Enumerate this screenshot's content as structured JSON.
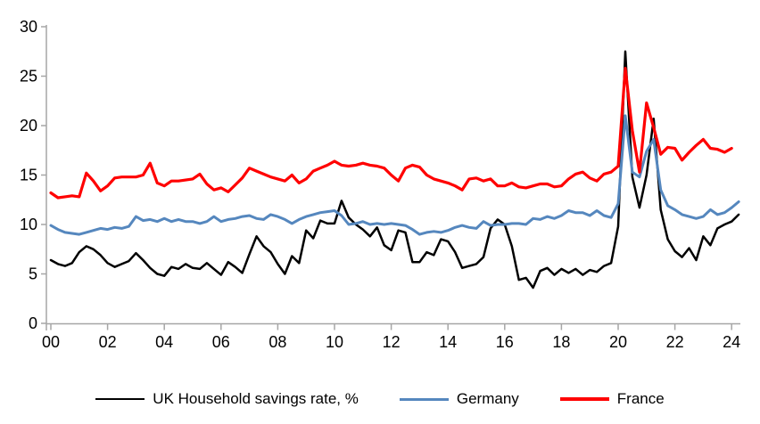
{
  "chart_data": {
    "type": "line",
    "title": "",
    "x_axis": {
      "tick_labels": [
        "00",
        "02",
        "04",
        "06",
        "08",
        "10",
        "12",
        "14",
        "16",
        "18",
        "20",
        "22",
        "24"
      ],
      "start_year": 2000,
      "points_per_year": 4
    },
    "y_axis": {
      "ticks": [
        0,
        5,
        10,
        15,
        20,
        25,
        30
      ],
      "min": 0,
      "max": 30
    },
    "grid": false,
    "legend_position": "bottom",
    "series": [
      {
        "name": "UK Household savings rate, %",
        "color": "#000000",
        "values": [
          6.4,
          6.0,
          5.8,
          6.1,
          7.2,
          7.8,
          7.5,
          6.9,
          6.1,
          5.7,
          6.0,
          6.3,
          7.1,
          6.4,
          5.6,
          5.0,
          4.8,
          5.7,
          5.5,
          6.0,
          5.6,
          5.5,
          6.1,
          5.5,
          4.9,
          6.2,
          5.7,
          5.1,
          7.0,
          8.8,
          7.8,
          7.2,
          6.0,
          5.0,
          6.8,
          6.1,
          9.4,
          8.6,
          10.4,
          10.1,
          10.1,
          12.4,
          10.7,
          10.0,
          9.5,
          8.8,
          9.7,
          7.9,
          7.4,
          9.4,
          9.2,
          6.2,
          6.2,
          7.2,
          6.9,
          8.5,
          8.3,
          7.2,
          5.6,
          5.8,
          6.0,
          6.7,
          9.6,
          10.5,
          10.0,
          7.8,
          4.4,
          4.6,
          3.6,
          5.3,
          5.6,
          4.9,
          5.5,
          5.1,
          5.5,
          4.9,
          5.4,
          5.2,
          5.8,
          6.1,
          9.8,
          27.5,
          14.8,
          11.7,
          15.0,
          20.7,
          11.5,
          8.5,
          7.3,
          6.7,
          7.6,
          6.4,
          8.8,
          7.9,
          9.6,
          10.0,
          10.3,
          11.0
        ]
      },
      {
        "name": "Germany",
        "color": "#5587BE",
        "values": [
          9.9,
          9.5,
          9.2,
          9.1,
          9.0,
          9.2,
          9.4,
          9.6,
          9.5,
          9.7,
          9.6,
          9.8,
          10.8,
          10.4,
          10.5,
          10.3,
          10.6,
          10.3,
          10.5,
          10.3,
          10.3,
          10.1,
          10.3,
          10.8,
          10.3,
          10.5,
          10.6,
          10.8,
          10.9,
          10.6,
          10.5,
          11.0,
          10.8,
          10.5,
          10.1,
          10.5,
          10.8,
          11.0,
          11.2,
          11.3,
          11.4,
          10.9,
          10.0,
          10.1,
          10.3,
          10.0,
          10.1,
          10.0,
          10.1,
          10.0,
          9.9,
          9.5,
          9.0,
          9.2,
          9.3,
          9.2,
          9.4,
          9.7,
          9.9,
          9.7,
          9.6,
          10.3,
          9.9,
          10.0,
          10.0,
          10.1,
          10.1,
          10.0,
          10.6,
          10.5,
          10.8,
          10.6,
          10.9,
          11.4,
          11.2,
          11.2,
          10.9,
          11.4,
          10.9,
          10.7,
          12.1,
          21.0,
          15.3,
          14.8,
          17.4,
          18.6,
          13.5,
          11.9,
          11.5,
          11.0,
          10.8,
          10.6,
          10.8,
          11.5,
          11.0,
          11.2,
          11.7,
          12.3
        ]
      },
      {
        "name": "France",
        "color": "#FF0000",
        "values": [
          13.2,
          12.7,
          12.8,
          12.9,
          12.8,
          15.2,
          14.4,
          13.4,
          13.9,
          14.7,
          14.8,
          14.8,
          14.8,
          15.0,
          16.2,
          14.2,
          13.9,
          14.4,
          14.4,
          14.5,
          14.6,
          15.1,
          14.1,
          13.5,
          13.7,
          13.3,
          14.0,
          14.7,
          15.7,
          15.4,
          15.1,
          14.8,
          14.6,
          14.4,
          15.0,
          14.2,
          14.6,
          15.4,
          15.7,
          16.0,
          16.4,
          16.0,
          15.9,
          16.0,
          16.2,
          16.0,
          15.9,
          15.7,
          15.0,
          14.4,
          15.7,
          16.0,
          15.8,
          15.0,
          14.6,
          14.4,
          14.2,
          13.9,
          13.5,
          14.6,
          14.7,
          14.4,
          14.6,
          13.9,
          13.9,
          14.2,
          13.8,
          13.7,
          13.9,
          14.1,
          14.1,
          13.8,
          13.9,
          14.6,
          15.1,
          15.3,
          14.7,
          14.4,
          15.1,
          15.3,
          15.9,
          25.8,
          19.5,
          15.3,
          22.3,
          19.8,
          17.1,
          17.8,
          17.7,
          16.5,
          17.3,
          18.0,
          18.6,
          17.7,
          17.6,
          17.3,
          17.7
        ]
      }
    ],
    "axis_color": "#A6A6A6",
    "label_color": "#000000"
  }
}
